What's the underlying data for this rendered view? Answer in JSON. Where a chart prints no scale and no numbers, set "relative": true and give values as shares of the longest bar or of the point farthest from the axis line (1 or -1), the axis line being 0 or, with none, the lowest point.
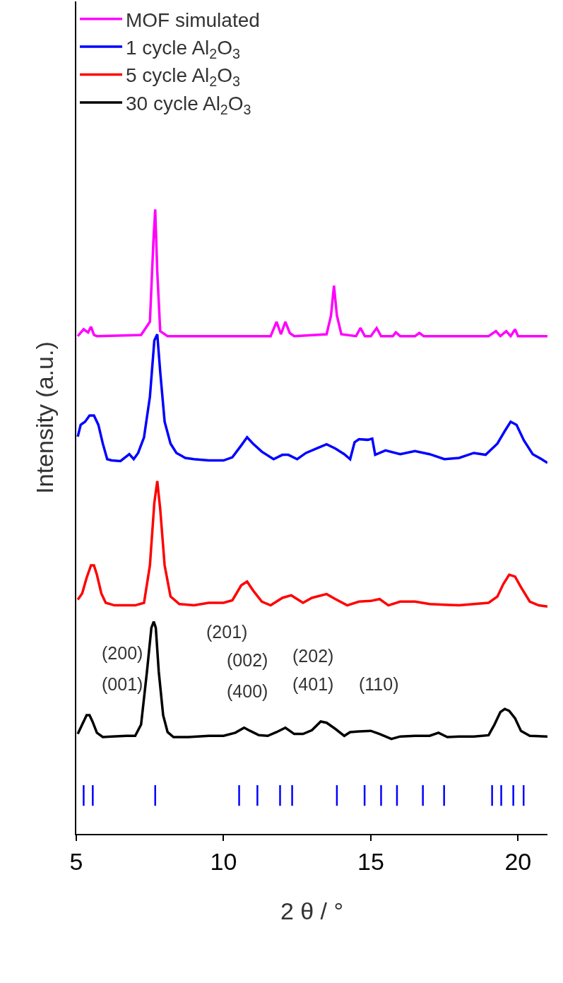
{
  "chart_data": {
    "type": "line",
    "xlabel": "2 θ / °",
    "ylabel": "Intensity (a.u.)",
    "relative": true,
    "xlim": [
      5,
      21
    ],
    "xticks": [
      5,
      10,
      15,
      20
    ],
    "legend": "top left",
    "marker": "none",
    "line_style": "solid",
    "series": [
      {
        "name": "MOF simulated",
        "color": "#ff00ff",
        "x": [
          5.05,
          5.25,
          5.4,
          5.5,
          5.6,
          5.7,
          7.2,
          7.5,
          7.62,
          7.68,
          7.75,
          7.85,
          8.1,
          11.6,
          11.8,
          11.95,
          12.1,
          12.25,
          12.4,
          13.5,
          13.65,
          13.75,
          13.85,
          14.0,
          14.5,
          14.65,
          14.8,
          15.0,
          15.2,
          15.35,
          15.5,
          15.75,
          15.85,
          16.0,
          16.5,
          16.65,
          16.8,
          19.0,
          19.25,
          19.4,
          19.6,
          19.75,
          19.9,
          20.0,
          20.1,
          20.3,
          21.0
        ],
        "values": [
          0.797,
          0.808,
          0.803,
          0.812,
          0.799,
          0.797,
          0.799,
          0.82,
          0.95,
          1.0,
          0.9,
          0.805,
          0.797,
          0.797,
          0.82,
          0.8,
          0.82,
          0.802,
          0.797,
          0.8,
          0.83,
          0.878,
          0.83,
          0.8,
          0.797,
          0.81,
          0.797,
          0.797,
          0.81,
          0.797,
          0.797,
          0.797,
          0.803,
          0.797,
          0.797,
          0.802,
          0.797,
          0.797,
          0.805,
          0.797,
          0.805,
          0.797,
          0.808,
          0.797,
          0.797,
          0.797,
          0.797
        ]
      },
      {
        "name": "1 cycle Al$_{2}$O$_{3}$",
        "color": "#0000ff",
        "x": [
          5.05,
          5.15,
          5.3,
          5.45,
          5.6,
          5.75,
          5.9,
          6.05,
          6.2,
          6.5,
          6.8,
          6.95,
          7.1,
          7.3,
          7.5,
          7.65,
          7.75,
          7.85,
          8.0,
          8.2,
          8.4,
          8.7,
          9.0,
          9.5,
          10.0,
          10.3,
          10.6,
          10.8,
          11.0,
          11.3,
          11.7,
          12.0,
          12.2,
          12.5,
          12.8,
          13.2,
          13.5,
          13.8,
          14.1,
          14.3,
          14.45,
          14.6,
          14.9,
          15.05,
          15.15,
          15.5,
          16.0,
          16.5,
          17.0,
          17.5,
          18.0,
          18.5,
          18.9,
          19.3,
          19.55,
          19.75,
          19.95,
          20.2,
          20.5,
          20.8,
          21.0
        ],
        "values": [
          0.636,
          0.655,
          0.66,
          0.67,
          0.67,
          0.655,
          0.625,
          0.6,
          0.598,
          0.597,
          0.608,
          0.6,
          0.61,
          0.635,
          0.7,
          0.79,
          0.8,
          0.74,
          0.66,
          0.625,
          0.61,
          0.602,
          0.6,
          0.598,
          0.598,
          0.603,
          0.622,
          0.635,
          0.625,
          0.612,
          0.6,
          0.607,
          0.607,
          0.6,
          0.61,
          0.618,
          0.624,
          0.617,
          0.608,
          0.6,
          0.627,
          0.632,
          0.631,
          0.633,
          0.607,
          0.614,
          0.608,
          0.613,
          0.608,
          0.6,
          0.602,
          0.61,
          0.607,
          0.625,
          0.645,
          0.66,
          0.655,
          0.63,
          0.608,
          0.6,
          0.594
        ]
      },
      {
        "name": "5 cycle Al$_{2}$O$_{3}$",
        "color": "#ff0000",
        "x": [
          5.05,
          5.2,
          5.35,
          5.5,
          5.6,
          5.7,
          5.85,
          6.0,
          6.3,
          6.7,
          7.0,
          7.3,
          7.5,
          7.65,
          7.75,
          7.85,
          8.0,
          8.2,
          8.5,
          9.0,
          9.5,
          10.0,
          10.3,
          10.6,
          10.8,
          11.0,
          11.3,
          11.6,
          12.0,
          12.3,
          12.7,
          13.0,
          13.5,
          13.8,
          14.2,
          14.6,
          15.0,
          15.3,
          15.6,
          16.0,
          16.5,
          17.0,
          17.5,
          18.0,
          18.5,
          19.0,
          19.3,
          19.5,
          19.7,
          19.9,
          20.1,
          20.4,
          20.7,
          21.0
        ],
        "values": [
          0.375,
          0.385,
          0.41,
          0.43,
          0.43,
          0.415,
          0.385,
          0.37,
          0.366,
          0.366,
          0.366,
          0.37,
          0.43,
          0.53,
          0.565,
          0.52,
          0.43,
          0.38,
          0.368,
          0.366,
          0.37,
          0.37,
          0.374,
          0.398,
          0.404,
          0.39,
          0.372,
          0.366,
          0.378,
          0.382,
          0.37,
          0.378,
          0.384,
          0.376,
          0.366,
          0.372,
          0.373,
          0.376,
          0.366,
          0.372,
          0.372,
          0.368,
          0.367,
          0.366,
          0.368,
          0.37,
          0.38,
          0.4,
          0.415,
          0.412,
          0.395,
          0.372,
          0.366,
          0.364
        ]
      },
      {
        "name": "30 cycle Al$_{2}$O$_{3}$",
        "color": "#000000",
        "x": [
          5.05,
          5.2,
          5.35,
          5.45,
          5.55,
          5.7,
          5.9,
          6.2,
          6.7,
          7.0,
          7.2,
          7.4,
          7.55,
          7.63,
          7.7,
          7.8,
          7.95,
          8.1,
          8.3,
          8.8,
          9.5,
          10.0,
          10.4,
          10.7,
          10.9,
          11.2,
          11.5,
          11.8,
          12.1,
          12.4,
          12.7,
          13.0,
          13.3,
          13.5,
          13.8,
          14.1,
          14.3,
          14.6,
          15.0,
          15.3,
          15.7,
          16.0,
          16.5,
          17.0,
          17.3,
          17.6,
          18.0,
          18.5,
          19.0,
          19.2,
          19.4,
          19.55,
          19.7,
          19.9,
          20.1,
          20.4,
          21.0
        ],
        "values": [
          0.16,
          0.175,
          0.19,
          0.19,
          0.18,
          0.162,
          0.155,
          0.156,
          0.157,
          0.157,
          0.175,
          0.26,
          0.33,
          0.34,
          0.33,
          0.26,
          0.19,
          0.163,
          0.155,
          0.155,
          0.157,
          0.157,
          0.162,
          0.17,
          0.165,
          0.158,
          0.157,
          0.163,
          0.17,
          0.16,
          0.16,
          0.166,
          0.18,
          0.178,
          0.168,
          0.157,
          0.163,
          0.164,
          0.165,
          0.16,
          0.152,
          0.156,
          0.157,
          0.157,
          0.162,
          0.155,
          0.156,
          0.156,
          0.158,
          0.175,
          0.195,
          0.2,
          0.197,
          0.185,
          0.165,
          0.157,
          0.156
        ]
      },
      {
        "type": "line",
        "color": "#0000ff",
        "x": [
          5.25,
          5.25,
          null,
          5.56,
          5.56,
          null,
          7.68,
          7.68,
          null,
          10.53,
          10.53,
          null,
          11.15,
          11.15,
          null,
          11.92,
          11.92,
          null,
          12.33,
          12.33,
          null,
          13.85,
          13.85,
          null,
          14.79,
          14.79,
          null,
          15.35,
          15.35,
          null,
          15.89,
          15.89,
          null,
          16.77,
          16.77,
          null,
          17.49,
          17.49,
          null,
          19.12,
          19.12,
          null,
          19.43,
          19.43,
          null,
          19.84,
          19.84,
          null,
          20.19,
          20.19
        ],
        "values": [
          0.045,
          0.078,
          null,
          0.045,
          0.078,
          null,
          0.045,
          0.078,
          null,
          0.045,
          0.078,
          null,
          0.045,
          0.078,
          null,
          0.045,
          0.078,
          null,
          0.045,
          0.078,
          null,
          0.045,
          0.078,
          null,
          0.045,
          0.078,
          null,
          0.045,
          0.078,
          null,
          0.045,
          0.078,
          null,
          0.045,
          0.078,
          null,
          0.045,
          0.078,
          null,
          0.045,
          0.078,
          null,
          0.045,
          0.078,
          null,
          0.045,
          0.078,
          null,
          0.045,
          0.078
        ]
      }
    ],
    "annotations": [
      "(200)",
      "(001)",
      "(201)",
      "(002)",
      "(400)",
      "(202)",
      "(401)",
      "(110)"
    ]
  }
}
